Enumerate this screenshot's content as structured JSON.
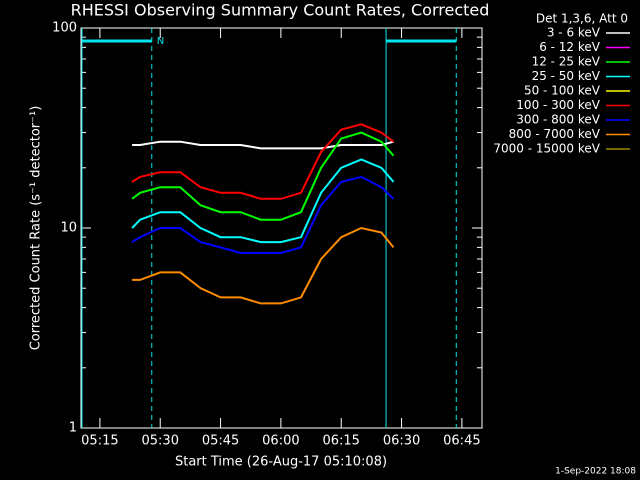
{
  "chart_data": {
    "type": "line",
    "title": "RHESSI Observing Summary Count Rates, Corrected",
    "y_label": "Corrected Count Rate (s⁻¹ detector⁻¹)",
    "x_label": "Start Time (26-Aug-17 05:10:08)",
    "legend_title": "Det 1,3,6, Att 0",
    "footer": "1-Sep-2022 18:08",
    "log_y": true,
    "ylim": [
      1,
      100
    ],
    "yticks": [
      1,
      10,
      100
    ],
    "yminorticks": [
      2,
      3,
      4,
      5,
      6,
      7,
      8,
      9,
      20,
      30,
      40,
      50,
      60,
      70,
      80,
      90
    ],
    "xlim": [
      310.3,
      410.0
    ],
    "xticks": [
      {
        "value": 315,
        "label": "05:15"
      },
      {
        "value": 330,
        "label": "05:30"
      },
      {
        "value": 345,
        "label": "05:45"
      },
      {
        "value": 360,
        "label": "06:00"
      },
      {
        "value": 375,
        "label": "06:15"
      },
      {
        "value": 390,
        "label": "06:30"
      },
      {
        "value": 405,
        "label": "06:45"
      }
    ],
    "night_intervals": [
      [
        310.3,
        327.9
      ],
      [
        385.9,
        403.6
      ]
    ],
    "night_label": "N",
    "x": [
      323,
      325,
      330,
      335,
      340,
      345,
      350,
      355,
      360,
      365,
      370,
      375,
      380,
      385,
      388
    ],
    "series": [
      {
        "name": "3 - 6 keV",
        "color": "#ffffff",
        "values": [
          26,
          26,
          27,
          27,
          26,
          26,
          26,
          25,
          25,
          25,
          25,
          26,
          26,
          26,
          27
        ]
      },
      {
        "name": "6 - 12 keV",
        "color": "#ff00ff",
        "values": [
          null,
          null,
          null,
          null,
          null,
          null,
          null,
          null,
          null,
          null,
          null,
          null,
          null,
          null,
          null
        ]
      },
      {
        "name": "12 - 25 keV",
        "color": "#00ff00",
        "values": [
          14,
          15,
          16,
          16,
          13,
          12,
          12,
          11,
          11,
          12,
          20,
          28,
          30,
          27,
          23
        ]
      },
      {
        "name": "25 - 50 keV",
        "color": "#00ffff",
        "values": [
          10,
          11,
          12,
          12,
          10,
          9,
          9,
          8.5,
          8.5,
          9,
          15,
          20,
          22,
          20,
          17
        ]
      },
      {
        "name": "50 - 100 keV",
        "color": "#ffff00",
        "values": [
          null,
          null,
          null,
          null,
          null,
          null,
          null,
          null,
          null,
          null,
          null,
          null,
          null,
          null,
          null
        ]
      },
      {
        "name": "100 - 300 keV",
        "color": "#ff0000",
        "values": [
          17,
          18,
          19,
          19,
          16,
          15,
          15,
          14,
          14,
          15,
          24,
          31,
          33,
          30,
          27
        ]
      },
      {
        "name": "300 - 800 keV",
        "color": "#0000ff",
        "values": [
          8.5,
          9,
          10,
          10,
          8.5,
          8,
          7.5,
          7.5,
          7.5,
          8,
          13,
          17,
          18,
          16,
          14
        ]
      },
      {
        "name": "800 - 7000 keV",
        "color": "#ff8c00",
        "values": [
          5.5,
          5.5,
          6,
          6,
          5,
          4.5,
          4.5,
          4.2,
          4.2,
          4.5,
          7,
          9,
          10,
          9.5,
          8
        ]
      },
      {
        "name": "7000 - 15000 keV",
        "color": "#9a8a00",
        "values": [
          null,
          null,
          null,
          null,
          null,
          null,
          null,
          null,
          null,
          null,
          null,
          null,
          null,
          null,
          null
        ]
      }
    ]
  }
}
